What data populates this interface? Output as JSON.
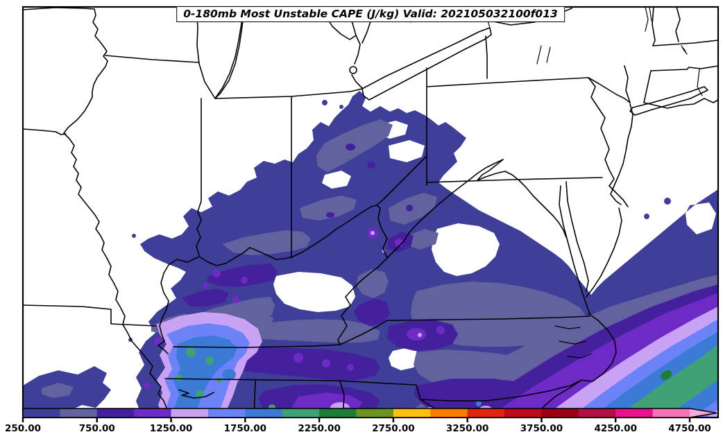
{
  "title": {
    "text": "0-180mb Most Unstable CAPE (J/kg) Valid: 202105032100f013"
  },
  "colorbar": {
    "tick_labels": [
      "250.00",
      "750.00",
      "1250.00",
      "1750.00",
      "2250.00",
      "2750.00",
      "3250.00",
      "3750.00",
      "4250.00",
      "4750.00"
    ],
    "levels": [
      250,
      500,
      750,
      1000,
      1250,
      1500,
      1750,
      2000,
      2250,
      2500,
      2750,
      3000,
      3250,
      3500,
      3750,
      4000,
      4250,
      4500,
      4750
    ],
    "colors": [
      "#3f3f99",
      "#62629f",
      "#45209d",
      "#6d2ac5",
      "#caa2f5",
      "#6e82f7",
      "#3b7ad7",
      "#3fa277",
      "#1e7d35",
      "#6b9421",
      "#fec10c",
      "#fa7d00",
      "#e2230f",
      "#bd0a16",
      "#9c0013",
      "#b20f42",
      "#e90f8d",
      "#f473b8"
    ],
    "arrow_color": "#f6abdb",
    "outline_color": "#000000"
  },
  "chart_data": {
    "type": "heatmap",
    "subtype": "filled-contour-weather-map",
    "title": "0-180mb Most Unstable CAPE (J/kg) Valid: 202105032100f013",
    "variable": "0-180mb Most Unstable CAPE",
    "units": "J/kg",
    "valid": "202105032100f013",
    "legend_position": "bottom",
    "contour_interval": 250,
    "contour_levels": [
      250,
      500,
      750,
      1000,
      1250,
      1500,
      1750,
      2000,
      2250,
      2500,
      2750,
      3000,
      3250,
      3500,
      3750,
      4000,
      4250,
      4500,
      4750
    ],
    "colorbar_tick_labels": [
      "250.00",
      "750.00",
      "1250.00",
      "1750.00",
      "2250.00",
      "2750.00",
      "3250.00",
      "3750.00",
      "4250.00",
      "4750.00"
    ],
    "colorbar_colors": [
      "#3f3f99",
      "#62629f",
      "#45209d",
      "#6d2ac5",
      "#caa2f5",
      "#6e82f7",
      "#3b7ad7",
      "#3fa277",
      "#1e7d35",
      "#6b9421",
      "#fec10c",
      "#fa7d00",
      "#e2230f",
      "#bd0a16",
      "#9c0013",
      "#b20f42",
      "#e90f8d",
      "#f473b8"
    ],
    "colorbar_extend_color": "#f6abdb",
    "value_range_shown": [
      250,
      4750
    ],
    "max_filled_level_on_map": 2500
  }
}
